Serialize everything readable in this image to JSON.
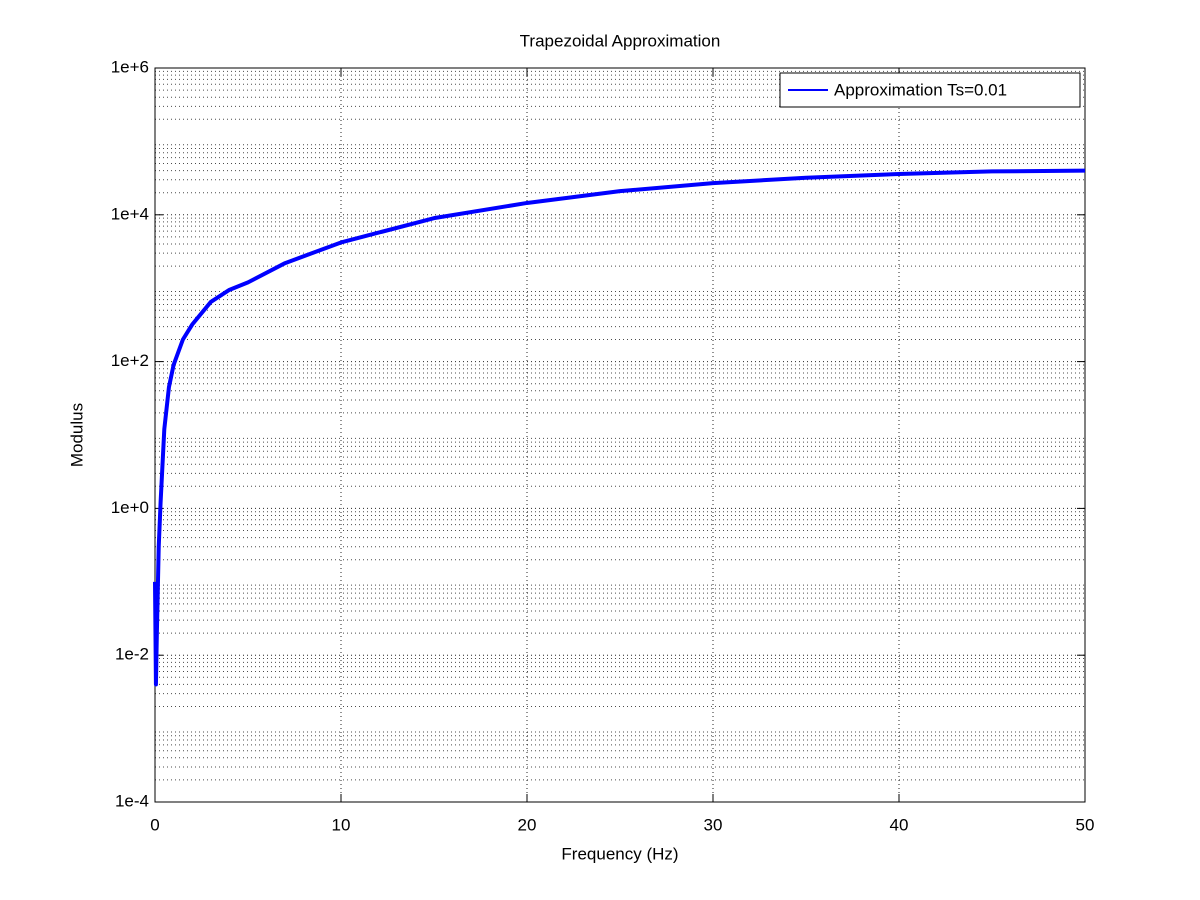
{
  "chart_data": {
    "type": "line",
    "title": "Trapezoidal Approximation",
    "x_label": "Frequency (Hz)",
    "y_label": "Modulus",
    "x": [
      0,
      0.05,
      0.1,
      0.2,
      0.3,
      0.5,
      0.75,
      1,
      1.5,
      2,
      3,
      4,
      5,
      7,
      10,
      15,
      20,
      25,
      30,
      35,
      40,
      45,
      50
    ],
    "series": [
      {
        "name": "Approximation Ts=0.01",
        "color": "#0000ff",
        "values": [
          0.1,
          0.004,
          0.02,
          0.3,
          1.2,
          12,
          45,
          90,
          200,
          320,
          650,
          950,
          1200,
          2200,
          4200,
          9000,
          14500,
          21000,
          27000,
          32000,
          36000,
          39000,
          40000
        ]
      }
    ],
    "xlim": [
      0,
      50
    ],
    "xticks": [
      0,
      10,
      20,
      30,
      40,
      50
    ],
    "ylim": [
      0.0001,
      1000000
    ],
    "yticks": [
      {
        "value": 0.0001,
        "label": "1e-4"
      },
      {
        "value": 0.01,
        "label": "1e-2"
      },
      {
        "value": 1,
        "label": "1e+0"
      },
      {
        "value": 100,
        "label": "1e+2"
      },
      {
        "value": 10000,
        "label": "1e+4"
      },
      {
        "value": 1000000,
        "label": "1e+6"
      }
    ],
    "y_scale": "log",
    "grid": true,
    "minor_grid": true,
    "legend": "upper right"
  }
}
